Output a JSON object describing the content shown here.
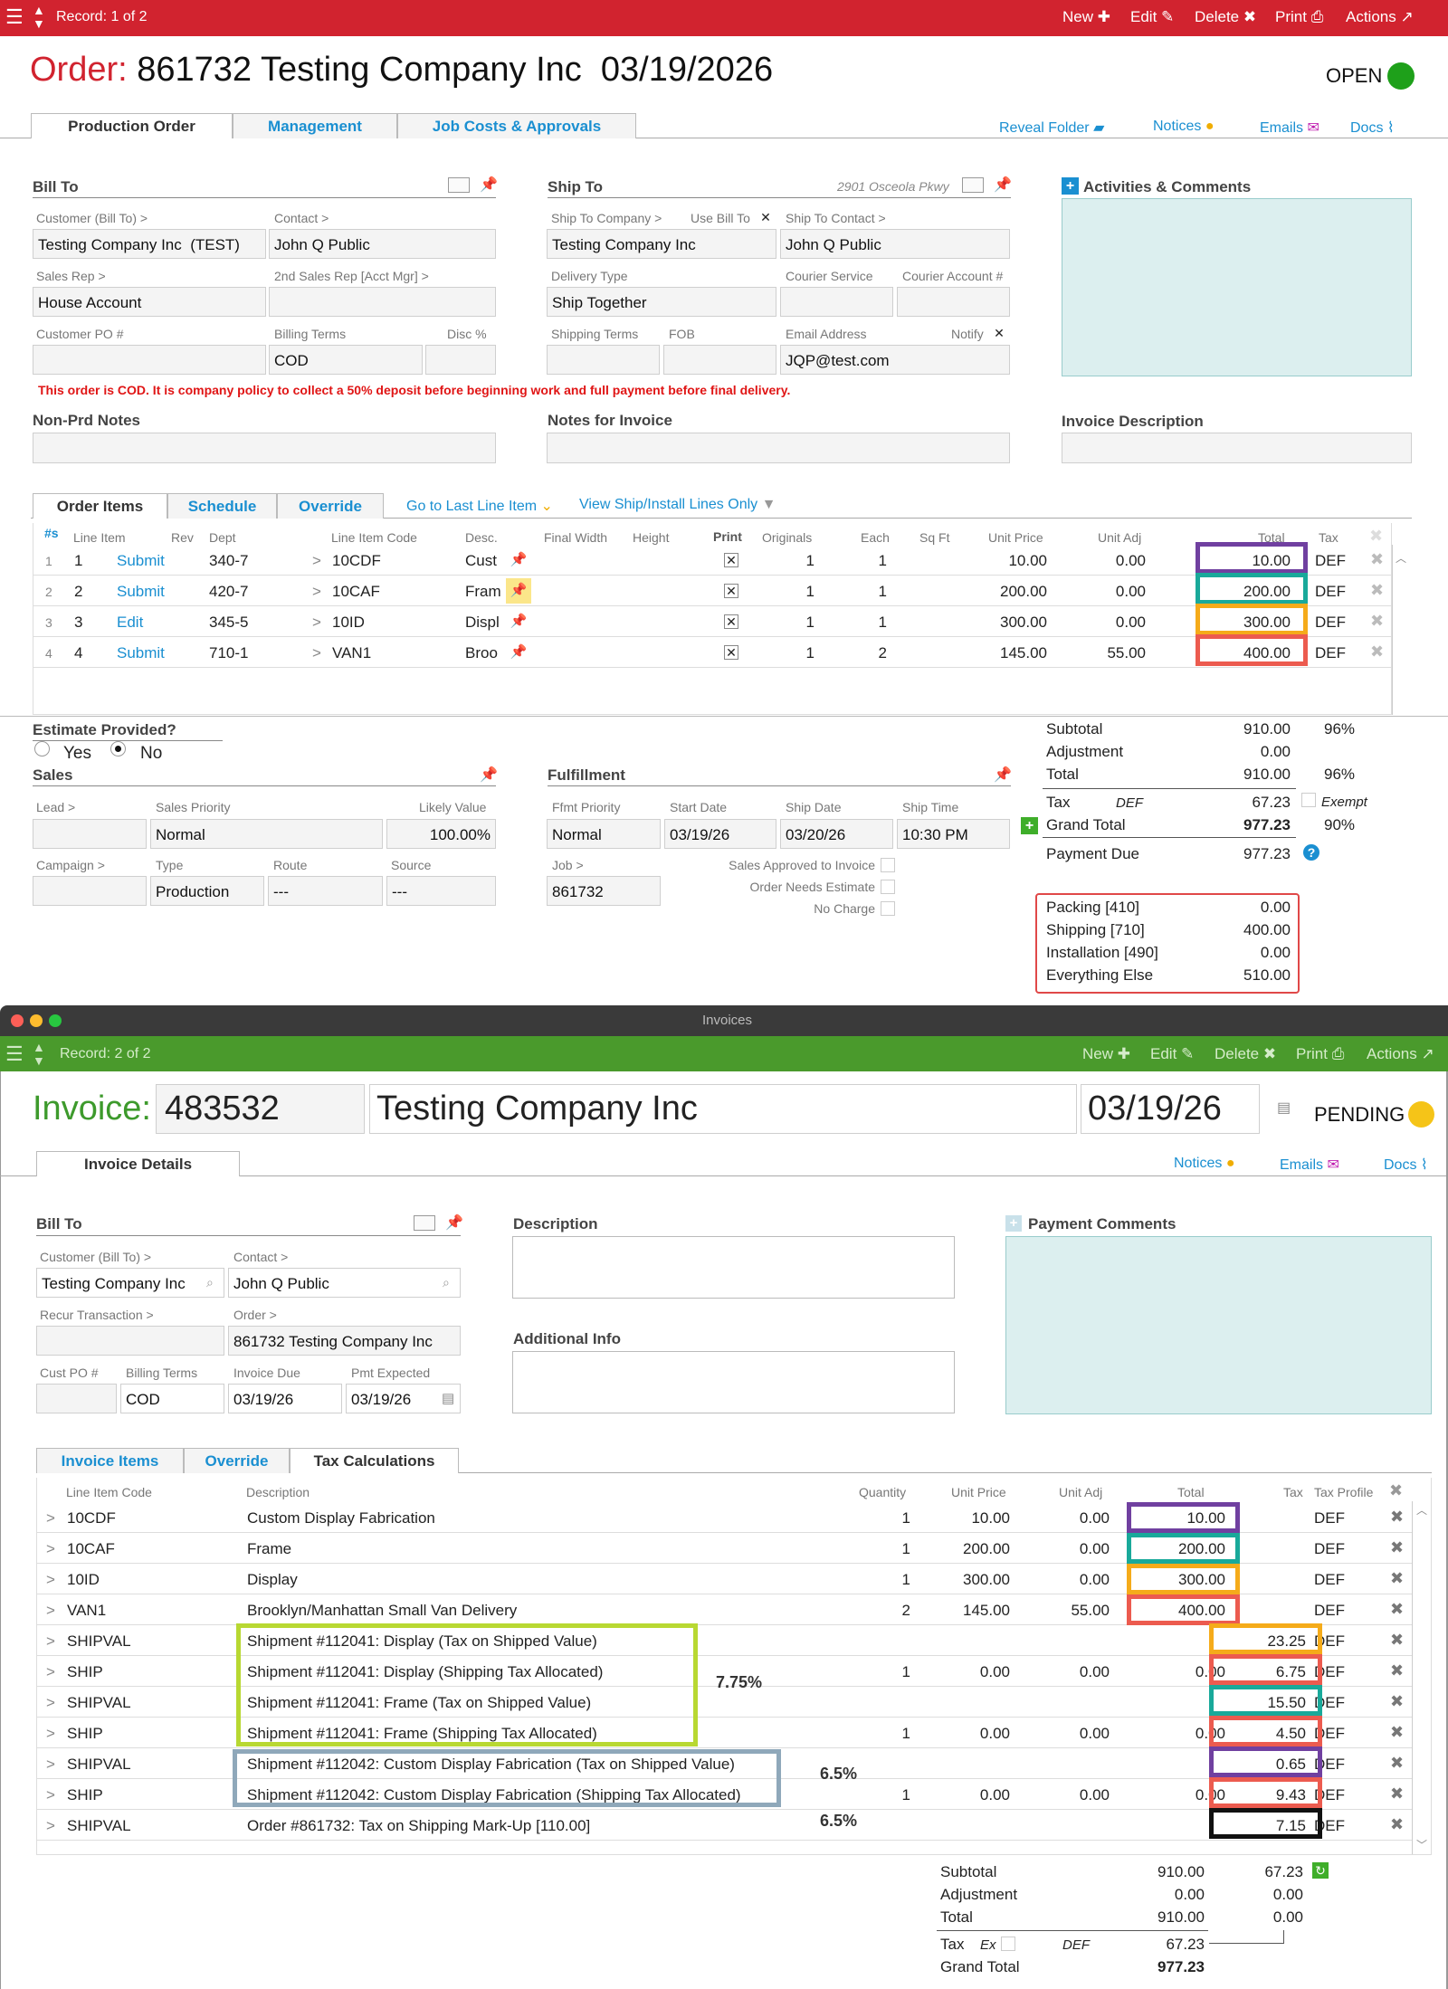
{
  "order_topbar": {
    "record": "Record: 1 of 2",
    "new": "New",
    "edit": "Edit",
    "delete": "Delete",
    "print": "Print",
    "actions": "Actions"
  },
  "order": {
    "prefix": "Order:",
    "title": "861732 Testing Company Inc  03/19/2026",
    "status": "OPEN",
    "tabs": [
      "Production Order",
      "Management",
      "Job Costs & Approvals"
    ],
    "links": [
      "Reveal Folder",
      "Notices",
      "Emails",
      "Docs"
    ],
    "bill_to": {
      "heading": "Bill To",
      "customer_label": "Customer (Bill To) >",
      "customer": "Testing Company Inc  (TEST)",
      "contact_label": "Contact >",
      "contact": "John Q Public",
      "sales_rep_label": "Sales Rep >",
      "sales_rep": "House Account",
      "sales_rep2_label": "2nd Sales Rep [Acct Mgr] >",
      "po_label": "Customer PO #",
      "billing_terms_label": "Billing Terms",
      "billing_terms": "COD",
      "disc_label": "Disc %"
    },
    "ship_to": {
      "heading": "Ship To",
      "address": "2901 Osceola Pkwy",
      "company_label": "Ship To Company >",
      "use_bill_to_label": "Use Bill To",
      "company": "Testing Company Inc",
      "contact_label": "Ship To Contact >",
      "contact": "John Q Public",
      "delivery_type_label": "Delivery Type",
      "delivery_type": "Ship Together",
      "courier_service_label": "Courier Service",
      "courier_account_label": "Courier Account #",
      "shipping_terms_label": "Shipping Terms",
      "fob_label": "FOB",
      "email_label": "Email Address",
      "notify_label": "Notify",
      "email": "JQP@test.com"
    },
    "activities_label": "Activities & Comments",
    "cod_warning": "This order is COD. It is company policy to collect a 50% deposit before beginning work and full payment before final delivery.",
    "nonprd_label": "Non-Prd Notes",
    "notes_invoice_label": "Notes for Invoice",
    "invoice_desc_label": "Invoice Description",
    "items_tabs": [
      "Order Items",
      "Schedule",
      "Override"
    ],
    "go_last": "Go to Last Line Item",
    "view_ship": "View Ship/Install Lines Only",
    "items_headers": [
      "#s",
      "Line Item",
      "Rev",
      "Dept",
      "Line Item Code",
      "Desc.",
      "Final Width",
      "Height",
      "Print",
      "Originals",
      "Each",
      "Sq Ft",
      "Unit Price",
      "Unit Adj",
      "Total",
      "Tax"
    ],
    "items": [
      {
        "n": "1",
        "line": "1",
        "action": "Submit",
        "dept": "340-7",
        "code": "10CDF",
        "desc": "Cust",
        "orig": "1",
        "each": "1",
        "price": "10.00",
        "adj": "0.00",
        "total": "10.00",
        "tax": "DEF"
      },
      {
        "n": "2",
        "line": "2",
        "action": "Submit",
        "dept": "420-7",
        "code": "10CAF",
        "desc": "Fram",
        "orig": "1",
        "each": "1",
        "price": "200.00",
        "adj": "0.00",
        "total": "200.00",
        "tax": "DEF"
      },
      {
        "n": "3",
        "line": "3",
        "action": "Edit",
        "dept": "345-5",
        "code": "10ID",
        "desc": "Displ",
        "orig": "1",
        "each": "1",
        "price": "300.00",
        "adj": "0.00",
        "total": "300.00",
        "tax": "DEF"
      },
      {
        "n": "4",
        "line": "4",
        "action": "Submit",
        "dept": "710-1",
        "code": "VAN1",
        "desc": "Broo",
        "orig": "1",
        "each": "2",
        "price": "145.00",
        "adj": "55.00",
        "total": "400.00",
        "tax": "DEF"
      }
    ],
    "estimate": {
      "label": "Estimate Provided?",
      "yes": "Yes",
      "no": "No"
    },
    "sales": {
      "heading": "Sales",
      "lead_label": "Lead >",
      "priority_label": "Sales Priority",
      "priority": "Normal",
      "likely_label": "Likely Value",
      "likely": "100.00%",
      "campaign_label": "Campaign >",
      "type_label": "Type",
      "type": "Production",
      "route_label": "Route",
      "route": "---",
      "source_label": "Source",
      "source": "---"
    },
    "fulfillment": {
      "heading": "Fulfillment",
      "priority_label": "Ffmt Priority",
      "priority": "Normal",
      "start_label": "Start Date",
      "start": "03/19/26",
      "ship_label": "Ship Date",
      "ship": "03/20/26",
      "time_label": "Ship Time",
      "time": "10:30 PM",
      "job_label": "Job >",
      "job": "861732",
      "approved": "Sales Approved to Invoice",
      "needs_est": "Order Needs Estimate",
      "no_charge": "No Charge"
    },
    "totals": {
      "subtotal_label": "Subtotal",
      "subtotal": "910.00",
      "subtotal_pct": "96%",
      "adjustment_label": "Adjustment",
      "adjustment": "0.00",
      "total_label": "Total",
      "total": "910.00",
      "total_pct": "96%",
      "tax_label": "Tax",
      "tax_code": "DEF",
      "tax": "67.23",
      "exempt": "Exempt",
      "grand_label": "Grand Total",
      "grand": "977.23",
      "grand_pct": "90%",
      "due_label": "Payment Due",
      "due": "977.23"
    },
    "breakdown": [
      {
        "label": "Packing [410]",
        "value": "0.00"
      },
      {
        "label": "Shipping [710]",
        "value": "400.00"
      },
      {
        "label": "Installation [490]",
        "value": "0.00"
      },
      {
        "label": "Everything Else",
        "value": "510.00"
      }
    ]
  },
  "invoice_window": {
    "title": "Invoices"
  },
  "invoice_topbar": {
    "record": "Record: 2 of 2",
    "new": "New",
    "edit": "Edit",
    "delete": "Delete",
    "print": "Print",
    "actions": "Actions"
  },
  "invoice": {
    "prefix": "Invoice:",
    "number": "483532",
    "company": "Testing Company Inc",
    "date": "03/19/26",
    "status": "PENDING",
    "tab": "Invoice Details",
    "links": [
      "Notices",
      "Emails",
      "Docs"
    ],
    "bill_to": {
      "heading": "Bill To",
      "customer_label": "Customer (Bill To) >",
      "customer": "Testing Company Inc",
      "contact_label": "Contact >",
      "contact": "John Q Public",
      "recur_label": "Recur Transaction >",
      "order_label": "Order >",
      "order": "861732 Testing Company Inc",
      "po_label": "Cust PO #",
      "terms_label": "Billing Terms",
      "terms": "COD",
      "due_label": "Invoice Due",
      "due": "03/19/26",
      "pmt_label": "Pmt Expected",
      "pmt": "03/19/26"
    },
    "description_label": "Description",
    "additional_label": "Additional Info",
    "payment_comments_label": "Payment Comments",
    "items_tabs": [
      "Invoice Items",
      "Override",
      "Tax Calculations"
    ],
    "headers": [
      "Line Item Code",
      "Description",
      "Quantity",
      "Unit Price",
      "Unit Adj",
      "Total",
      "Tax",
      "Tax Profile"
    ],
    "items": [
      {
        "code": "10CDF",
        "desc": "Custom Display Fabrication",
        "qty": "1",
        "price": "10.00",
        "adj": "0.00",
        "total": "10.00",
        "tax": "",
        "profile": "DEF"
      },
      {
        "code": "10CAF",
        "desc": "Frame",
        "qty": "1",
        "price": "200.00",
        "adj": "0.00",
        "total": "200.00",
        "tax": "",
        "profile": "DEF"
      },
      {
        "code": "10ID",
        "desc": "Display",
        "qty": "1",
        "price": "300.00",
        "adj": "0.00",
        "total": "300.00",
        "tax": "",
        "profile": "DEF"
      },
      {
        "code": "VAN1",
        "desc": "Brooklyn/Manhattan Small Van Delivery",
        "qty": "2",
        "price": "145.00",
        "adj": "55.00",
        "total": "400.00",
        "tax": "",
        "profile": "DEF"
      },
      {
        "code": "SHIPVAL",
        "desc": "Shipment #112041: Display (Tax on Shipped Value)",
        "qty": "",
        "price": "",
        "adj": "",
        "total": "",
        "tax": "23.25",
        "profile": "DEF"
      },
      {
        "code": "SHIP",
        "desc": "Shipment #112041: Display (Shipping Tax Allocated)",
        "qty": "1",
        "price": "0.00",
        "adj": "0.00",
        "total": "0.00",
        "tax": "6.75",
        "profile": "DEF"
      },
      {
        "code": "SHIPVAL",
        "desc": "Shipment #112041: Frame (Tax on Shipped Value)",
        "qty": "",
        "price": "",
        "adj": "",
        "total": "",
        "tax": "15.50",
        "profile": "DEF"
      },
      {
        "code": "SHIP",
        "desc": "Shipment #112041: Frame (Shipping Tax Allocated)",
        "qty": "1",
        "price": "0.00",
        "adj": "0.00",
        "total": "0.00",
        "tax": "4.50",
        "profile": "DEF"
      },
      {
        "code": "SHIPVAL",
        "desc": "Shipment #112042: Custom Display Fabrication (Tax on Shipped Value)",
        "qty": "",
        "price": "",
        "adj": "",
        "total": "",
        "tax": "0.65",
        "profile": "DEF"
      },
      {
        "code": "SHIP",
        "desc": "Shipment #112042: Custom Display Fabrication (Shipping Tax Allocated)",
        "qty": "1",
        "price": "0.00",
        "adj": "0.00",
        "total": "0.00",
        "tax": "9.43",
        "profile": "DEF"
      },
      {
        "code": "SHIPVAL",
        "desc": "Order #861732: Tax on Shipping Mark-Up [110.00]",
        "qty": "",
        "price": "",
        "adj": "",
        "total": "",
        "tax": "7.15",
        "profile": "DEF"
      }
    ],
    "annotations": {
      "rate1": "7.75%",
      "rate2": "6.5%",
      "rate3": "6.5%"
    },
    "totals": {
      "subtotal_label": "Subtotal",
      "subtotal": "910.00",
      "subtotal_tax": "67.23",
      "adjustment_label": "Adjustment",
      "adjustment": "0.00",
      "adjustment_tax": "0.00",
      "total_label": "Total",
      "total": "910.00",
      "total_tax": "0.00",
      "tax_label": "Tax",
      "ex_label": "Ex",
      "tax_code": "DEF",
      "tax": "67.23",
      "grand_label": "Grand Total",
      "grand": "977.23"
    }
  },
  "colors": {
    "order_bar": "#d1232f",
    "order_prefix": "#d1232f",
    "invoice_bar": "#4a9a2c",
    "invoice_prefix": "#3d9a2c",
    "link": "#1a8fd1",
    "highlight_purple": "#7040a0",
    "highlight_teal": "#19a99a",
    "highlight_orange": "#f5ab1a",
    "highlight_red": "#ec5b4f",
    "highlight_lime": "#b8d832",
    "highlight_steel": "#8fa8ba"
  }
}
